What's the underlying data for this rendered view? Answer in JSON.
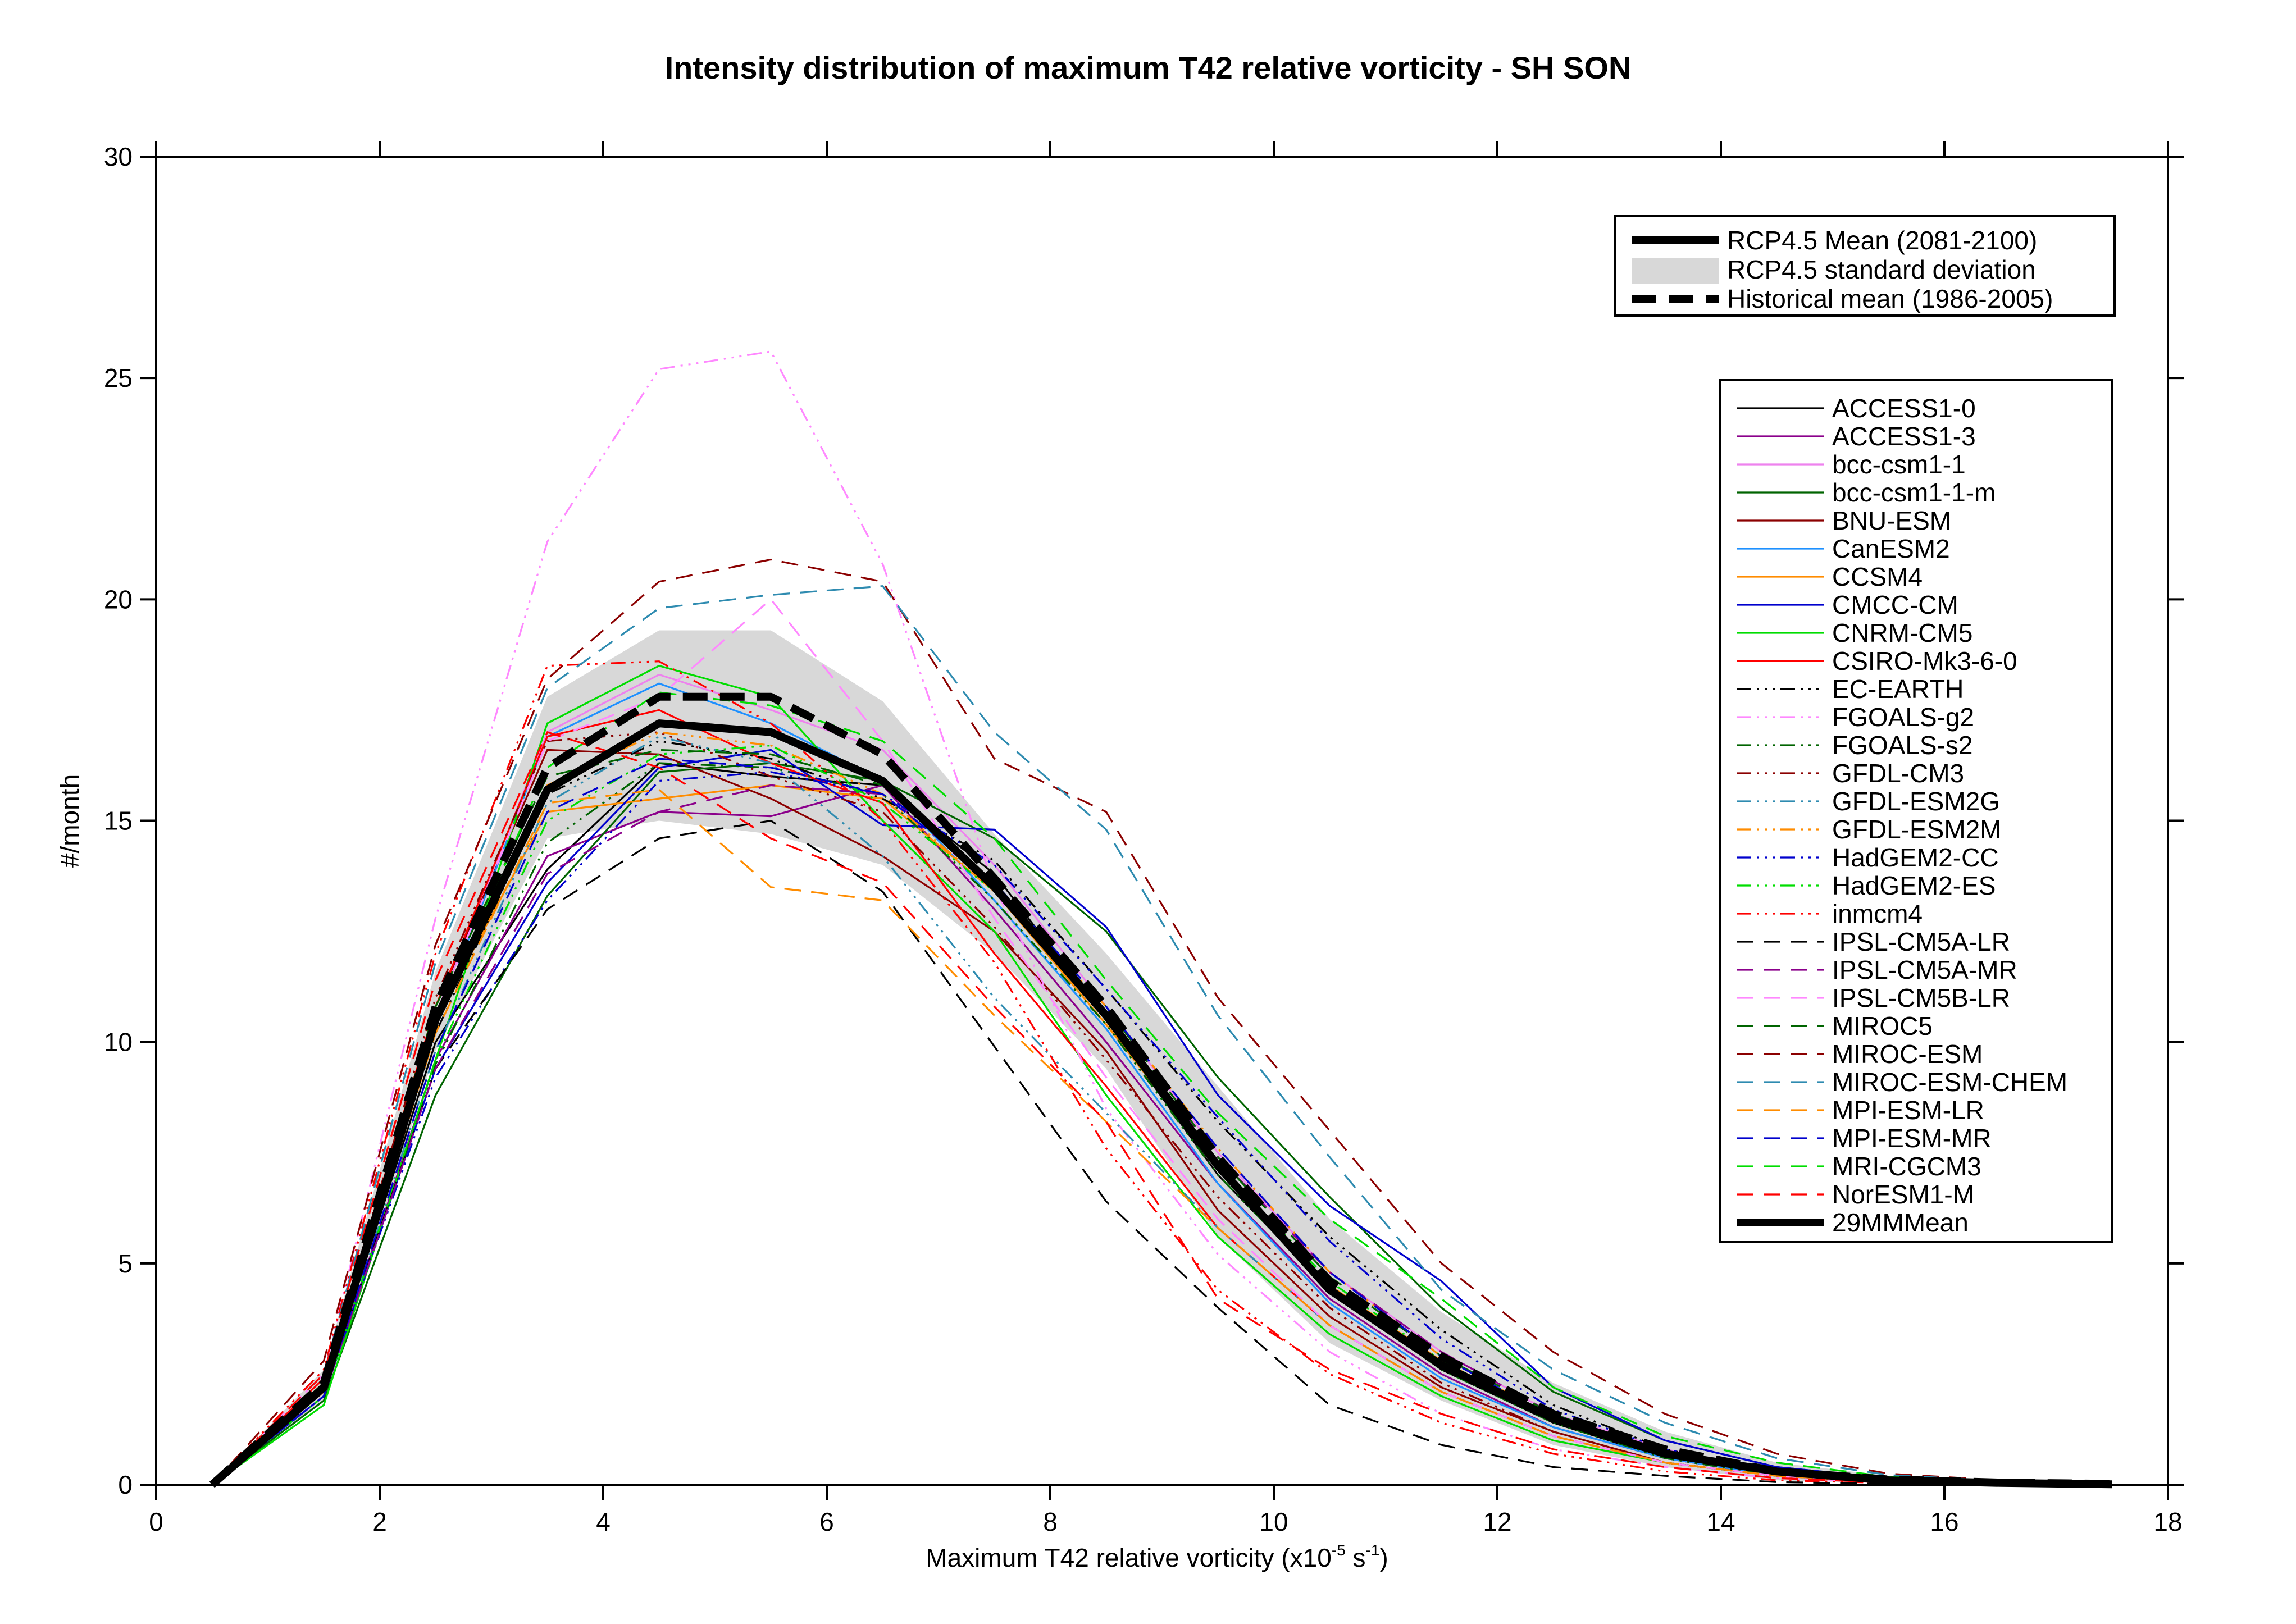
{
  "chart_data": {
    "type": "line",
    "title": "Intensity distribution of maximum T42 relative vorticity - SH SON",
    "xlabel_main": "Maximum T42 relative vorticity (x10",
    "xlabel_exp": "-5",
    "xlabel_mid": " s",
    "xlabel_exp2": "-1",
    "xlabel_end": ")",
    "ylabel": "#/month",
    "xlim": [
      0,
      18
    ],
    "ylim": [
      0,
      30
    ],
    "xticks": [
      "0",
      "2",
      "4",
      "6",
      "8",
      "10",
      "12",
      "14",
      "16",
      "18"
    ],
    "yticks": [
      "0",
      "5",
      "10",
      "15",
      "20",
      "25",
      "30"
    ],
    "x": [
      0.5,
      1.5,
      2.5,
      3.5,
      4.5,
      5.5,
      6.5,
      7.5,
      8.5,
      9.5,
      10.5,
      11.5,
      12.5,
      13.5,
      14.5,
      15.5,
      16.5,
      17.5
    ],
    "top_legend": [
      {
        "label": "RCP4.5 Mean (2081-2100)",
        "style": "thick-solid"
      },
      {
        "label": "RCP4.5 standard deviation",
        "style": "band"
      },
      {
        "label": "Historical mean (1986-2005)",
        "style": "thick-dash"
      }
    ],
    "std_upper": [
      0,
      2.6,
      11.6,
      17.8,
      19.3,
      19.3,
      17.7,
      14.7,
      12.0,
      9.0,
      6.0,
      3.9,
      2.3,
      1.2,
      0.5,
      0.2,
      0.1,
      0.03
    ],
    "std_lower": [
      0,
      1.9,
      9.8,
      14.6,
      15.0,
      14.7,
      14.0,
      12.0,
      9.4,
      5.6,
      3.2,
      1.9,
      0.9,
      0.4,
      0.1,
      0.03,
      0.01,
      0.0
    ],
    "rcp_mean": [
      0,
      2.2,
      10.5,
      15.7,
      17.2,
      17.0,
      15.9,
      13.5,
      10.6,
      7.2,
      4.4,
      2.7,
      1.5,
      0.7,
      0.3,
      0.1,
      0.04,
      0.01
    ],
    "hist_mean": [
      0,
      2.3,
      10.8,
      16.2,
      17.8,
      17.8,
      16.5,
      13.7,
      10.8,
      7.4,
      4.6,
      2.9,
      1.6,
      0.8,
      0.3,
      0.12,
      0.05,
      0.02
    ],
    "series": [
      {
        "name": "ACCESS1-0",
        "color": "#000000",
        "dash": "solid",
        "values": [
          0,
          2.1,
          10.0,
          13.9,
          16.3,
          16.0,
          15.8,
          13.8,
          10.5,
          7.0,
          4.4,
          2.6,
          1.4,
          0.6,
          0.2,
          0.08,
          0.03,
          0.01
        ]
      },
      {
        "name": "ACCESS1-3",
        "color": "#8b008b",
        "dash": "solid",
        "values": [
          0,
          2.0,
          9.6,
          14.2,
          15.2,
          15.1,
          15.8,
          13.0,
          10.0,
          6.8,
          4.2,
          2.5,
          1.3,
          0.6,
          0.2,
          0.08,
          0.03,
          0.01
        ]
      },
      {
        "name": "bcc-csm1-1",
        "color": "#ee82ee",
        "dash": "solid",
        "values": [
          0,
          2.2,
          10.6,
          17.0,
          18.3,
          17.5,
          16.6,
          14.0,
          10.8,
          7.5,
          4.8,
          3.0,
          1.6,
          0.8,
          0.3,
          0.12,
          0.05,
          0.02
        ]
      },
      {
        "name": "bcc-csm1-1-m",
        "color": "#006400",
        "dash": "solid",
        "values": [
          0,
          1.9,
          8.8,
          13.3,
          16.1,
          16.3,
          15.9,
          14.6,
          12.5,
          9.2,
          6.5,
          4.0,
          2.1,
          1.0,
          0.4,
          0.15,
          0.06,
          0.02
        ]
      },
      {
        "name": "BNU-ESM",
        "color": "#8b0000",
        "dash": "solid",
        "values": [
          0,
          2.2,
          10.8,
          16.6,
          16.5,
          15.5,
          14.2,
          12.5,
          9.8,
          6.2,
          3.8,
          2.2,
          1.2,
          0.5,
          0.2,
          0.07,
          0.03,
          0.01
        ]
      },
      {
        "name": "CanESM2",
        "color": "#1e90ff",
        "dash": "solid",
        "values": [
          0,
          2.1,
          10.4,
          16.9,
          18.1,
          17.2,
          15.9,
          13.2,
          10.3,
          6.8,
          4.1,
          2.4,
          1.3,
          0.6,
          0.2,
          0.08,
          0.03,
          0.01
        ]
      },
      {
        "name": "CCSM4",
        "color": "#ff8c00",
        "dash": "solid",
        "values": [
          0,
          2.3,
          10.5,
          15.2,
          15.5,
          15.8,
          15.5,
          13.4,
          10.4,
          7.2,
          4.5,
          2.8,
          1.5,
          0.7,
          0.3,
          0.1,
          0.04,
          0.01
        ]
      },
      {
        "name": "CMCC-CM",
        "color": "#0000cd",
        "dash": "solid",
        "values": [
          0,
          2.0,
          9.4,
          13.6,
          16.2,
          16.6,
          14.9,
          14.8,
          12.6,
          8.8,
          6.3,
          4.6,
          2.2,
          1.0,
          0.4,
          0.15,
          0.06,
          0.02
        ]
      },
      {
        "name": "CNRM-CM5",
        "color": "#00dd00",
        "dash": "solid",
        "values": [
          0,
          1.8,
          9.6,
          17.2,
          18.5,
          17.8,
          15.0,
          12.5,
          8.8,
          5.6,
          3.4,
          2.0,
          1.0,
          0.5,
          0.2,
          0.06,
          0.02,
          0.01
        ]
      },
      {
        "name": "CSIRO-Mk3-6-0",
        "color": "#ff0000",
        "dash": "solid",
        "values": [
          0,
          2.4,
          10.8,
          16.9,
          17.5,
          16.3,
          15.4,
          12.0,
          9.0,
          5.8,
          3.6,
          2.1,
          1.1,
          0.5,
          0.2,
          0.06,
          0.02,
          0.01
        ]
      },
      {
        "name": "EC-EARTH",
        "color": "#000000",
        "dash": "dashdot",
        "values": [
          0,
          2.2,
          10.2,
          15.6,
          16.8,
          16.4,
          15.5,
          14.1,
          11.2,
          8.2,
          5.6,
          3.5,
          1.8,
          0.8,
          0.3,
          0.12,
          0.05,
          0.02
        ]
      },
      {
        "name": "FGOALS-g2",
        "color": "#ff88ff",
        "dash": "dashdot",
        "values": [
          0,
          2.5,
          12.8,
          21.3,
          25.2,
          25.6,
          20.8,
          13.5,
          8.5,
          5.2,
          3.0,
          1.6,
          0.8,
          0.4,
          0.15,
          0.05,
          0.02,
          0.01
        ]
      },
      {
        "name": "FGOALS-s2",
        "color": "#006400",
        "dash": "dashdot",
        "values": [
          0,
          2.0,
          9.5,
          14.5,
          16.3,
          16.2,
          15.6,
          13.2,
          10.4,
          7.0,
          4.4,
          2.6,
          1.4,
          0.6,
          0.2,
          0.08,
          0.03,
          0.01
        ]
      },
      {
        "name": "GFDL-CM3",
        "color": "#8b0000",
        "dash": "dashdot",
        "values": [
          0,
          2.3,
          11.0,
          16.8,
          17.0,
          16.0,
          15.2,
          12.6,
          9.6,
          6.5,
          4.0,
          2.3,
          1.2,
          0.5,
          0.2,
          0.07,
          0.03,
          0.01
        ]
      },
      {
        "name": "GFDL-ESM2G",
        "color": "#2e8bb0",
        "dash": "dashdot",
        "values": [
          0,
          2.0,
          9.8,
          15.4,
          16.9,
          16.3,
          14.2,
          11.0,
          8.4,
          5.8,
          3.6,
          2.1,
          1.1,
          0.5,
          0.2,
          0.07,
          0.03,
          0.01
        ]
      },
      {
        "name": "GFDL-ESM2M",
        "color": "#ff8c00",
        "dash": "dashdot",
        "values": [
          0,
          2.2,
          10.4,
          15.8,
          17.0,
          16.7,
          15.6,
          13.4,
          10.8,
          7.6,
          4.8,
          2.9,
          1.5,
          0.7,
          0.3,
          0.1,
          0.04,
          0.01
        ]
      },
      {
        "name": "HadGEM2-CC",
        "color": "#0000cd",
        "dash": "dashdot",
        "values": [
          0,
          2.1,
          9.2,
          13.2,
          15.9,
          16.1,
          15.6,
          14.0,
          11.2,
          8.3,
          5.5,
          3.3,
          1.7,
          0.8,
          0.3,
          0.1,
          0.04,
          0.01
        ]
      },
      {
        "name": "HadGEM2-ES",
        "color": "#00dd00",
        "dash": "dashdot",
        "values": [
          0,
          2.0,
          9.6,
          15.0,
          16.5,
          16.7,
          15.4,
          13.4,
          10.6,
          7.2,
          4.6,
          2.8,
          1.5,
          0.7,
          0.3,
          0.1,
          0.04,
          0.01
        ]
      },
      {
        "name": "inmcm4",
        "color": "#ff0000",
        "dash": "dashdot",
        "values": [
          0,
          2.6,
          12.0,
          18.5,
          18.6,
          17.2,
          15.0,
          11.8,
          7.6,
          4.4,
          2.5,
          1.4,
          0.7,
          0.3,
          0.1,
          0.04,
          0.01,
          0.0
        ]
      },
      {
        "name": "IPSL-CM5A-LR",
        "color": "#000000",
        "dash": "dashed",
        "values": [
          0,
          2.1,
          9.4,
          13.0,
          14.6,
          15.0,
          13.4,
          9.9,
          6.4,
          4.0,
          1.8,
          0.9,
          0.4,
          0.2,
          0.06,
          0.02,
          0.01,
          0.0
        ]
      },
      {
        "name": "IPSL-CM5A-MR",
        "color": "#8b008b",
        "dash": "dashed",
        "values": [
          0,
          2.0,
          9.4,
          13.8,
          15.2,
          15.8,
          15.6,
          13.6,
          10.6,
          7.4,
          4.8,
          3.0,
          1.6,
          0.7,
          0.3,
          0.1,
          0.04,
          0.01
        ]
      },
      {
        "name": "IPSL-CM5B-LR",
        "color": "#ff88ff",
        "dash": "dashed",
        "values": [
          0,
          2.1,
          10.6,
          16.8,
          17.8,
          20.0,
          16.8,
          12.8,
          9.2,
          6.0,
          3.6,
          2.1,
          1.1,
          0.5,
          0.2,
          0.07,
          0.03,
          0.01
        ]
      },
      {
        "name": "MIROC5",
        "color": "#006400",
        "dash": "dashed",
        "values": [
          0,
          2.3,
          10.8,
          16.0,
          16.6,
          16.5,
          15.8,
          13.6,
          10.8,
          7.4,
          4.7,
          2.9,
          1.6,
          0.7,
          0.3,
          0.1,
          0.04,
          0.01
        ]
      },
      {
        "name": "MIROC-ESM",
        "color": "#8b0000",
        "dash": "dashed",
        "values": [
          0,
          2.8,
          12.2,
          18.2,
          20.4,
          20.9,
          20.4,
          16.4,
          15.2,
          11.0,
          8.0,
          5.0,
          3.0,
          1.6,
          0.7,
          0.25,
          0.1,
          0.04
        ]
      },
      {
        "name": "MIROC-ESM-CHEM",
        "color": "#2e8bb0",
        "dash": "dashed",
        "values": [
          0,
          2.5,
          11.8,
          18.0,
          19.8,
          20.1,
          20.3,
          17.0,
          14.8,
          10.6,
          7.4,
          4.4,
          2.6,
          1.4,
          0.6,
          0.22,
          0.09,
          0.03
        ]
      },
      {
        "name": "MPI-ESM-LR",
        "color": "#ff8c00",
        "dash": "dashed",
        "values": [
          0,
          2.1,
          10.2,
          15.4,
          15.7,
          13.5,
          13.2,
          10.6,
          8.2,
          5.8,
          3.6,
          2.1,
          1.1,
          0.5,
          0.2,
          0.07,
          0.03,
          0.01
        ]
      },
      {
        "name": "MPI-ESM-MR",
        "color": "#0000cd",
        "dash": "dashed",
        "values": [
          0,
          2.0,
          9.8,
          15.2,
          16.4,
          16.2,
          15.6,
          13.6,
          10.8,
          7.6,
          4.8,
          2.9,
          1.5,
          0.7,
          0.3,
          0.1,
          0.04,
          0.01
        ]
      },
      {
        "name": "MRI-CGCM3",
        "color": "#00dd00",
        "dash": "dashed",
        "values": [
          0,
          2.2,
          10.4,
          16.2,
          17.9,
          17.6,
          16.8,
          14.6,
          11.4,
          8.4,
          6.0,
          4.2,
          2.2,
          1.1,
          0.5,
          0.18,
          0.07,
          0.02
        ]
      },
      {
        "name": "NorESM1-M",
        "color": "#ff0000",
        "dash": "dashed",
        "values": [
          0,
          2.5,
          11.4,
          17.0,
          16.2,
          14.6,
          13.6,
          10.8,
          8.2,
          4.2,
          2.6,
          1.6,
          0.8,
          0.4,
          0.15,
          0.05,
          0.02,
          0.01
        ]
      },
      {
        "name": "29MMMean",
        "color": "#000000",
        "dash": "thick",
        "values": [
          0,
          2.2,
          10.5,
          15.7,
          17.2,
          17.0,
          15.9,
          13.5,
          10.6,
          7.2,
          4.4,
          2.7,
          1.5,
          0.7,
          0.3,
          0.1,
          0.04,
          0.01
        ]
      }
    ],
    "grid": false,
    "legend_position": "right"
  }
}
